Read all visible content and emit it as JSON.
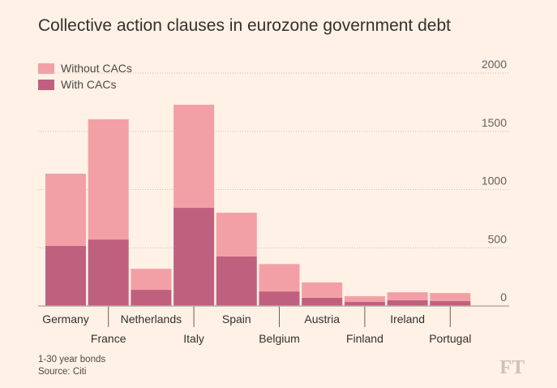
{
  "colors": {
    "without": "#f2a0a6",
    "with": "#c0607f",
    "background": "#fff1e5"
  },
  "chart_data": {
    "type": "bar",
    "stacked": true,
    "title": "Collective action clauses in eurozone government debt",
    "categories": [
      "Germany",
      "France",
      "Netherlands",
      "Italy",
      "Spain",
      "Belgium",
      "Austria",
      "Finland",
      "Ireland",
      "Portugal"
    ],
    "series": [
      {
        "name": "With CACs",
        "values": [
          516,
          571,
          139,
          843,
          425,
          125,
          70,
          35,
          49,
          42
        ]
      },
      {
        "name": "Without CACs",
        "values": [
          620,
          1032,
          181,
          885,
          376,
          235,
          132,
          49,
          69,
          69
        ]
      }
    ],
    "legend": [
      "Without CACs",
      "With CACs"
    ],
    "legend_placement": "top-left",
    "ylim": [
      0,
      2000
    ],
    "yticks": [
      0,
      500,
      1000,
      1500,
      2000
    ],
    "ytick_labels": [
      "0",
      "500",
      "1000",
      "1500",
      "2000"
    ],
    "grid": true,
    "xlabel": "",
    "ylabel": ""
  },
  "notes": {
    "line1": "1-30 year bonds",
    "line2": "Source: Citi"
  },
  "logo": "FT"
}
